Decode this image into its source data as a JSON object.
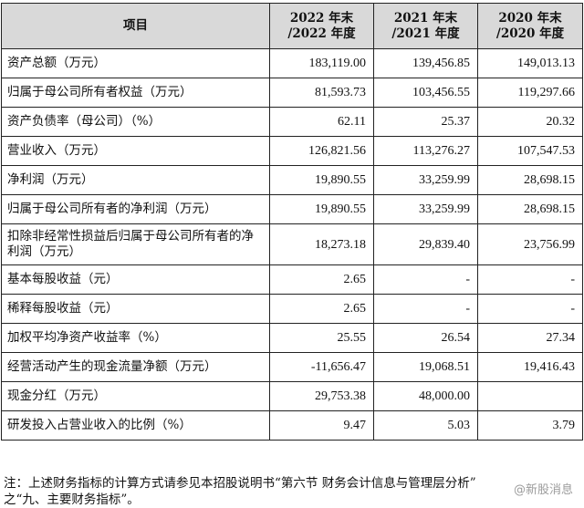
{
  "table": {
    "header": {
      "item": "项目",
      "columns": [
        {
          "line1": "2022 年末",
          "line2": "/2022 年度"
        },
        {
          "line1": "2021 年末",
          "line2": "/2021 年度"
        },
        {
          "line1": "2020 年末",
          "line2": "/2020 年度"
        }
      ]
    },
    "rows": [
      {
        "label": "资产总额（万元）",
        "v2022": "183,119.00",
        "v2021": "139,456.85",
        "v2020": "149,013.13"
      },
      {
        "label": "归属于母公司所有者权益（万元）",
        "v2022": "81,593.73",
        "v2021": "103,456.55",
        "v2020": "119,297.66"
      },
      {
        "label": "资产负债率（母公司）（%）",
        "v2022": "62.11",
        "v2021": "25.37",
        "v2020": "20.32"
      },
      {
        "label": "营业收入（万元）",
        "v2022": "126,821.56",
        "v2021": "113,276.27",
        "v2020": "107,547.53"
      },
      {
        "label": "净利润（万元）",
        "v2022": "19,890.55",
        "v2021": "33,259.99",
        "v2020": "28,698.15"
      },
      {
        "label": "归属于母公司所有者的净利润（万元）",
        "v2022": "19,890.55",
        "v2021": "33,259.99",
        "v2020": "28,698.15"
      },
      {
        "label": "扣除非经常性损益后归属于母公司所有者的净利润（万元）",
        "v2022": "18,273.18",
        "v2021": "29,839.40",
        "v2020": "23,756.99"
      },
      {
        "label": "基本每股收益（元）",
        "v2022": "2.65",
        "v2021": "-",
        "v2020": "-"
      },
      {
        "label": "稀释每股收益（元）",
        "v2022": "2.65",
        "v2021": "-",
        "v2020": "-"
      },
      {
        "label": "加权平均净资产收益率（%）",
        "v2022": "25.55",
        "v2021": "26.54",
        "v2020": "27.34"
      },
      {
        "label": "经营活动产生的现金流量净额（万元）",
        "v2022": "-11,656.47",
        "v2021": "19,068.51",
        "v2020": "19,416.43"
      },
      {
        "label": "现金分红（万元）",
        "v2022": "29,753.38",
        "v2021": "48,000.00",
        "v2020": ""
      },
      {
        "label": "研发投入占营业收入的比例（%）",
        "v2022": "9.47",
        "v2021": "5.03",
        "v2020": "3.79"
      }
    ]
  },
  "note": {
    "line1": "注：上述财务指标的计算方式请参见本招股说明书“第六节 财务会计信息与管理层分析”",
    "line2": "之“九、主要财务指标”。"
  },
  "watermark": {
    "text": "@新股消息"
  }
}
